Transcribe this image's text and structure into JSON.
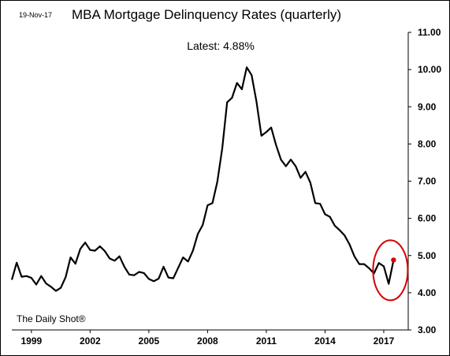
{
  "header": {
    "date": "19-Nov-17",
    "title": "MBA Mortgage Delinquency Rates (quarterly)",
    "latest_label": "Latest:  4.88%"
  },
  "source": "The Daily Shot®",
  "colors": {
    "line": "#000000",
    "highlight": "#d40000"
  },
  "chart_data": {
    "type": "line",
    "title": "MBA Mortgage Delinquency Rates (quarterly)",
    "xlabel": "",
    "ylabel": "",
    "ylim": [
      3.0,
      11.0
    ],
    "y_axis_side": "right",
    "grid": false,
    "y_ticks": [
      "3.00",
      "4.00",
      "5.00",
      "6.00",
      "7.00",
      "8.00",
      "9.00",
      "10.00",
      "11.00"
    ],
    "x_ticks": [
      "1999",
      "2002",
      "2005",
      "2008",
      "2011",
      "2014",
      "2017"
    ],
    "series": [
      {
        "x": [
          1998.0,
          1998.25,
          1998.5,
          1998.75,
          1999.0,
          1999.25,
          1999.5,
          1999.75,
          2000.0,
          2000.25,
          2000.5,
          2000.75,
          2001.0,
          2001.25,
          2001.5,
          2001.75,
          2002.0,
          2002.25,
          2002.5,
          2002.75,
          2003.0,
          2003.25,
          2003.5,
          2003.75,
          2004.0,
          2004.25,
          2004.5,
          2004.75,
          2005.0,
          2005.25,
          2005.5,
          2005.75,
          2006.0,
          2006.25,
          2006.5,
          2006.75,
          2007.0,
          2007.25,
          2007.5,
          2007.75,
          2008.0,
          2008.25,
          2008.5,
          2008.75,
          2009.0,
          2009.25,
          2009.5,
          2009.75,
          2010.0,
          2010.25,
          2010.5,
          2010.75,
          2011.0,
          2011.25,
          2011.5,
          2011.75,
          2012.0,
          2012.25,
          2012.5,
          2012.75,
          2013.0,
          2013.25,
          2013.5,
          2013.75,
          2014.0,
          2014.25,
          2014.5,
          2014.75,
          2015.0,
          2015.25,
          2015.5,
          2015.75,
          2016.0,
          2016.25,
          2016.5,
          2016.75,
          2017.0,
          2017.25,
          2017.5
        ],
        "values": [
          4.35,
          4.81,
          4.43,
          4.45,
          4.4,
          4.22,
          4.45,
          4.25,
          4.16,
          4.05,
          4.13,
          4.42,
          4.95,
          4.78,
          5.18,
          5.35,
          5.15,
          5.13,
          5.25,
          5.12,
          4.92,
          4.86,
          4.98,
          4.7,
          4.49,
          4.47,
          4.56,
          4.53,
          4.37,
          4.31,
          4.38,
          4.7,
          4.41,
          4.39,
          4.67,
          4.95,
          4.84,
          5.13,
          5.58,
          5.82,
          6.35,
          6.41,
          6.99,
          7.88,
          9.12,
          9.24,
          9.64,
          9.47,
          10.06,
          9.85,
          9.13,
          8.22,
          8.32,
          8.44,
          7.97,
          7.58,
          7.4,
          7.58,
          7.4,
          7.09,
          7.25,
          6.96,
          6.41,
          6.39,
          6.11,
          6.04,
          5.8,
          5.68,
          5.54,
          5.3,
          4.98,
          4.77,
          4.77,
          4.66,
          4.52,
          4.8,
          4.71,
          4.24,
          4.88
        ]
      }
    ],
    "annotations": [
      {
        "type": "circle",
        "target": "latest point",
        "color": "#d40000"
      }
    ]
  }
}
